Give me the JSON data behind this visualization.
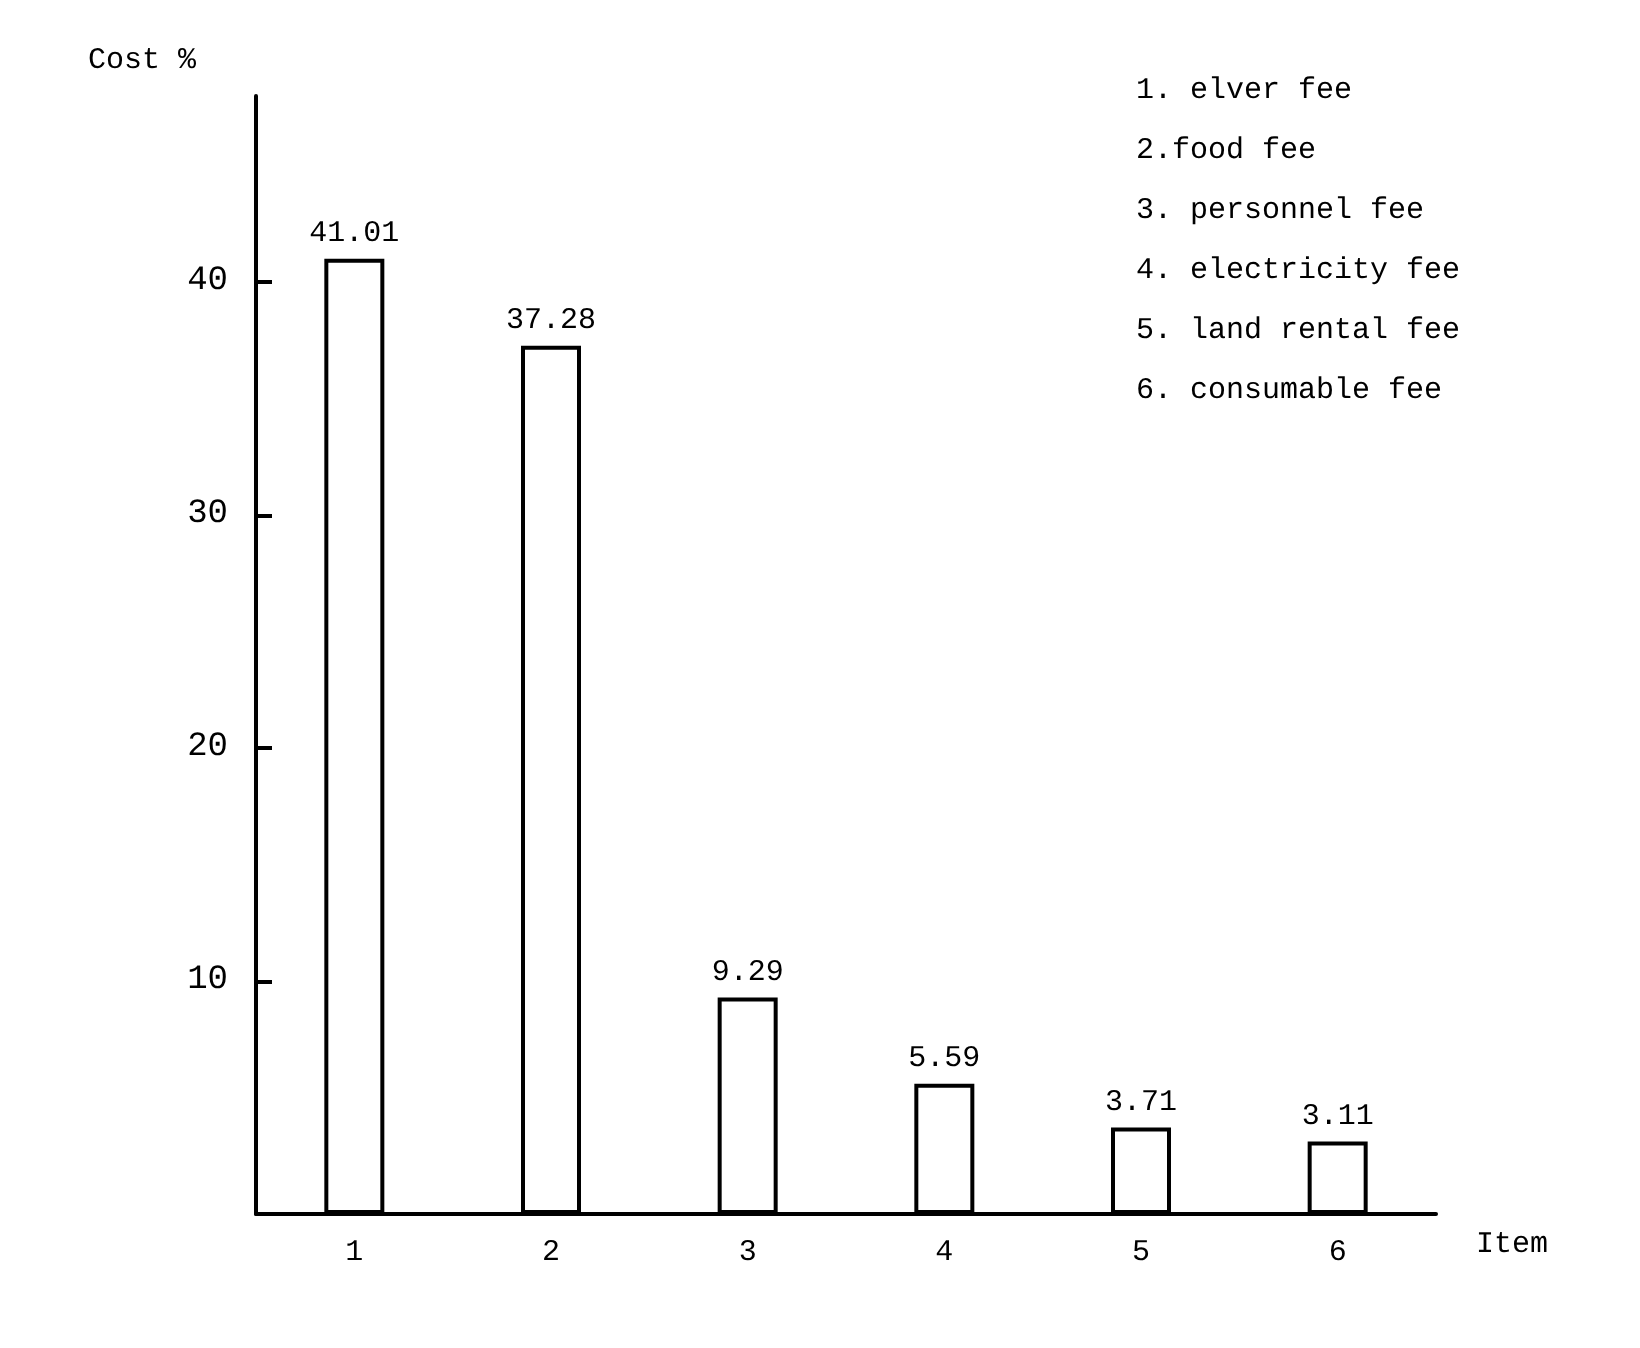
{
  "chart_data": {
    "type": "bar",
    "xlabel": "Item",
    "ylabel": "Cost %",
    "categories": [
      "1",
      "2",
      "3",
      "4",
      "5",
      "6"
    ],
    "values": [
      41.01,
      37.28,
      9.29,
      5.59,
      3.71,
      3.11
    ],
    "color": "#ffffff",
    "data_labels": true,
    "ylim": [
      0,
      48
    ],
    "yticks": [
      10,
      20,
      30,
      40
    ],
    "grid": false,
    "annotations": [
      "1. elver fee",
      "2.food fee",
      "3. personnel fee",
      "4. electricity fee",
      "5. land rental fee",
      "6. consumable fee"
    ]
  }
}
